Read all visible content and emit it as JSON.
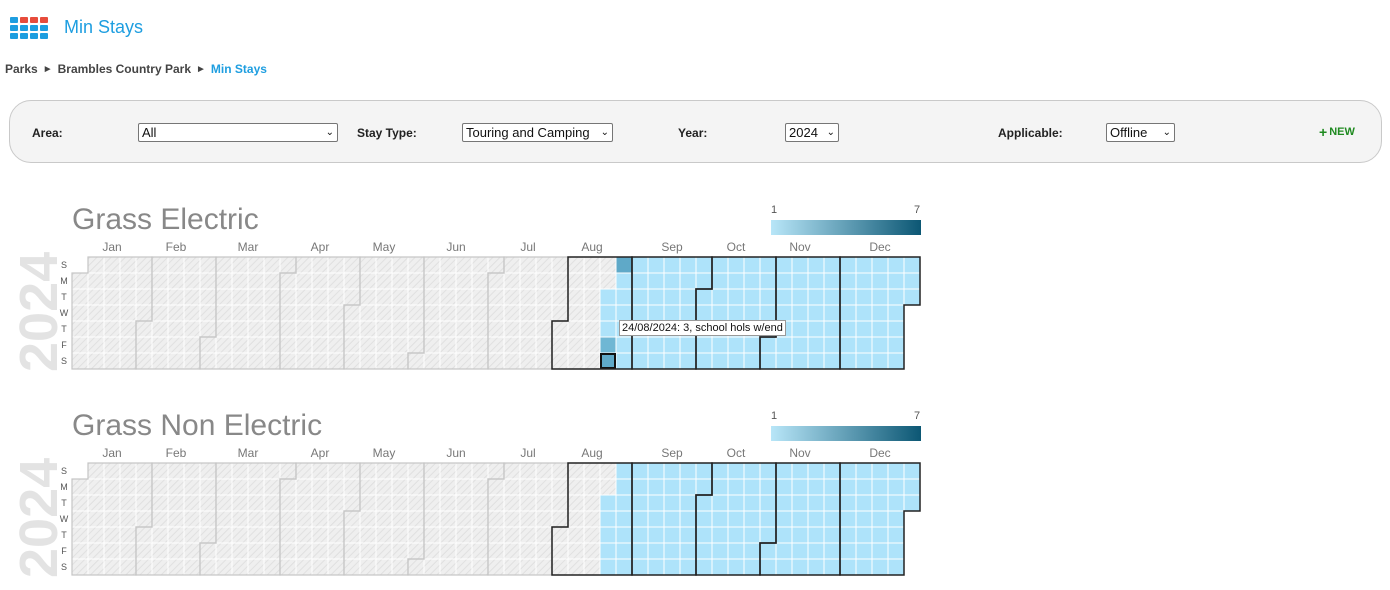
{
  "header": {
    "title": "Min Stays",
    "app_icon_colors": [
      "#1e9ee0",
      "#e74c3c",
      "#e74c3c",
      "#e74c3c",
      "#1e9ee0",
      "#1e9ee0",
      "#1e9ee0",
      "#1e9ee0",
      "#1e9ee0",
      "#1e9ee0",
      "#1e9ee0",
      "#1e9ee0"
    ]
  },
  "breadcrumb": {
    "items": [
      "Parks",
      "Brambles Country Park",
      "Min Stays"
    ],
    "separator": "►"
  },
  "filters": {
    "area_label": "Area:",
    "area_value": "All",
    "stay_type_label": "Stay Type:",
    "stay_type_value": "Touring and Camping",
    "year_label": "Year:",
    "year_value": "2024",
    "applicable_label": "Applicable:",
    "applicable_value": "Offline",
    "new_label": "NEW"
  },
  "calendars": [
    {
      "title": "Grass Electric",
      "year": "2024",
      "legend_min": "1",
      "legend_max": "7",
      "months": [
        "Jan",
        "Feb",
        "Mar",
        "Apr",
        "May",
        "Jun",
        "Jul",
        "Aug",
        "Sep",
        "Oct",
        "Nov",
        "Dec"
      ],
      "weekdays": [
        "S",
        "M",
        "T",
        "W",
        "T",
        "F",
        "S"
      ],
      "tooltip": "24/08/2024: 3, school hols w/end",
      "highlighted_date": "2024-08-24"
    },
    {
      "title": "Grass Non Electric",
      "year": "2024",
      "legend_min": "1",
      "legend_max": "7",
      "months": [
        "Jan",
        "Feb",
        "Mar",
        "Apr",
        "May",
        "Jun",
        "Jul",
        "Aug",
        "Sep",
        "Oct",
        "Nov",
        "Dec"
      ],
      "weekdays": [
        "S",
        "M",
        "T",
        "W",
        "T",
        "F",
        "S"
      ]
    }
  ],
  "colors": {
    "accent": "#1e9ee0",
    "empty_cell": "#efefef",
    "light_value": "#aee3fa",
    "mid_value": "#6fb7d4",
    "darker_value": "#5fa9c8",
    "new_button": "#1f8a20"
  }
}
